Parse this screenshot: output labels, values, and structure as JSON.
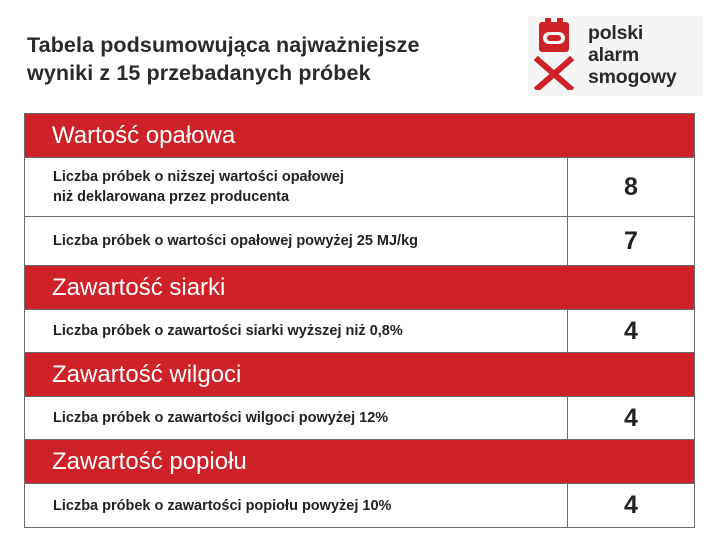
{
  "title": {
    "line1": "Tabela podsumowująca najważniejsze",
    "line2": "wyniki z 15 przebadanych próbek"
  },
  "logo": {
    "line1": "polski",
    "line2": "alarm",
    "line3": "smogowy",
    "mark_color": "#cf2228"
  },
  "colors": {
    "section_bg": "#cf2228",
    "section_text": "#ffffff"
  },
  "sections": [
    {
      "heading": "Wartość opałowa",
      "rows": [
        {
          "label_line1": "Liczba próbek o niższej wartości opałowej",
          "label_line2": "niż deklarowana przez producenta",
          "value": "8"
        },
        {
          "label_line1": "Liczba próbek o wartości opałowej powyżej 25 MJ/kg",
          "value": "7"
        }
      ]
    },
    {
      "heading": "Zawartość siarki",
      "rows": [
        {
          "label_line1": "Liczba próbek o zawartości siarki wyższej niż 0,8%",
          "value": "4"
        }
      ]
    },
    {
      "heading": "Zawartość wilgoci",
      "rows": [
        {
          "label_line1": "Liczba próbek o zawartości wilgoci powyżej 12%",
          "value": "4"
        }
      ]
    },
    {
      "heading": "Zawartość popiołu",
      "rows": [
        {
          "label_line1": "Liczba próbek o zawartości popiołu powyżej 10%",
          "value": "4"
        }
      ]
    }
  ]
}
